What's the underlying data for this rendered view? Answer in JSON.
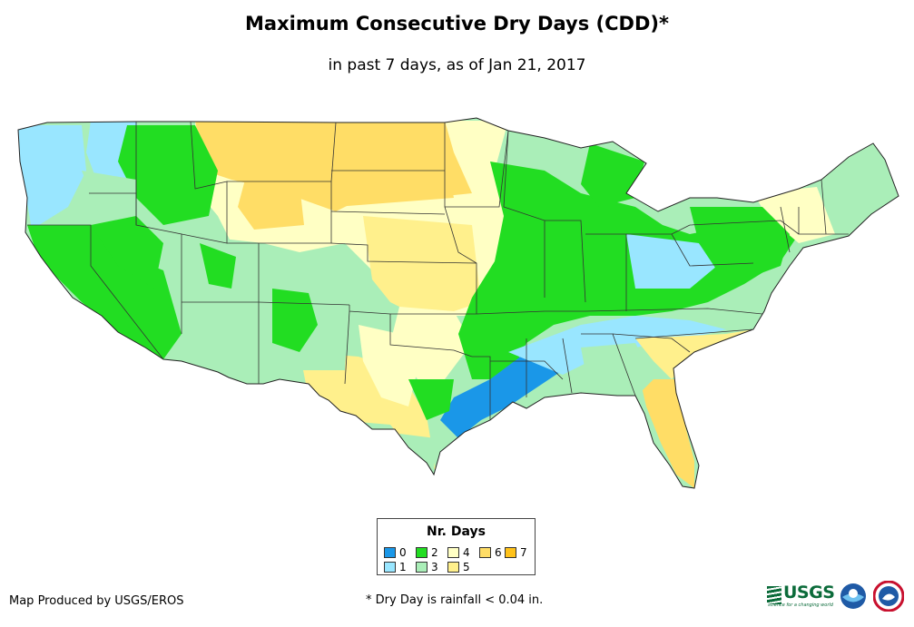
{
  "title": "Maximum Consecutive Dry Days (CDD)*",
  "subtitle": "in past 7 days, as of Jan 21, 2017",
  "legend": {
    "title": "Nr. Days",
    "items": [
      {
        "label": "0",
        "color": "#1a97e8"
      },
      {
        "label": "1",
        "color": "#99e6ff"
      },
      {
        "label": "2",
        "color": "#22dd22"
      },
      {
        "label": "3",
        "color": "#aaeeb8"
      },
      {
        "label": "4",
        "color": "#ffffc4"
      },
      {
        "label": "5",
        "color": "#fff08c"
      },
      {
        "label": "6",
        "color": "#ffdd66"
      },
      {
        "label": "7",
        "color": "#ffc21a"
      }
    ]
  },
  "credit": "Map Produced by USGS/EROS",
  "footnote": "* Dry Day is rainfall < 0.04 in.",
  "logos": {
    "usgs_text": "USGS",
    "usgs_tagline": "science for a changing world"
  },
  "icons": {
    "usgs": "usgs-logo-icon",
    "noaa": "noaa-logo-icon",
    "nws": "nws-logo-icon"
  }
}
